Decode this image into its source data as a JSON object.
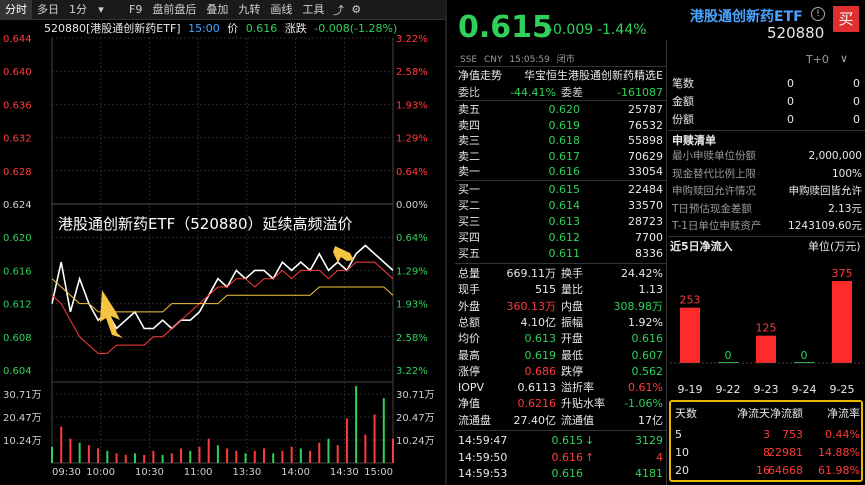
{
  "toolbar": {
    "tabs": [
      "分时",
      "多日",
      "1分",
      "F9",
      "盘前盘后",
      "叠加",
      "九转",
      "画线",
      "工具"
    ],
    "active_tab": "分时"
  },
  "chart_header": {
    "code_name": "520880[港股通创新药ETF]",
    "time": "15:00",
    "price_label": "价",
    "price": "0.616",
    "change_label": "涨跌",
    "change": "-0.008(-1.28%)"
  },
  "annotation": "港股通创新药ETF（520880）延续高频溢价",
  "chart_data": {
    "type": "line",
    "price_ticks_left": [
      "0.644",
      "0.640",
      "0.636",
      "0.632",
      "0.628",
      "0.624",
      "0.620",
      "0.616",
      "0.612",
      "0.608",
      "0.604"
    ],
    "pct_ticks_right": [
      "3.22%",
      "2.58%",
      "1.93%",
      "1.29%",
      "0.64%",
      "0.00%",
      "0.64%",
      "1.29%",
      "1.93%",
      "2.58%",
      "3.22%"
    ],
    "volume_ticks_left": [
      "30.71万",
      "20.47万",
      "10.24万"
    ],
    "volume_ticks_right": [
      "30.71万",
      "20.47万",
      "10.24万"
    ],
    "x_ticks": [
      "09:30",
      "10:00",
      "10:30",
      "11:00",
      "13:30",
      "14:00",
      "14:30",
      "15:00"
    ],
    "ylim": [
      0.604,
      0.644
    ],
    "prev_close": 0.624,
    "series": [
      {
        "values": [
          0.612,
          0.617,
          0.611,
          0.615,
          0.612,
          0.61,
          0.611,
          0.609,
          0.61,
          0.611,
          0.609,
          0.609,
          0.61,
          0.609,
          0.61,
          0.61,
          0.611,
          0.613,
          0.615,
          0.614,
          0.616,
          0.615,
          0.616,
          0.616,
          0.615,
          0.617,
          0.616,
          0.617,
          0.616,
          0.618,
          0.616,
          0.617,
          0.616,
          0.618,
          0.619,
          0.618,
          0.617,
          0.616
        ]
      },
      {
        "values": [
          0.613,
          0.612,
          0.61,
          0.608,
          0.607,
          0.606,
          0.606,
          0.607,
          0.607,
          0.607,
          0.607,
          0.608,
          0.608,
          0.609,
          0.61,
          0.611,
          0.612,
          0.613,
          0.614,
          0.614,
          0.615,
          0.615,
          0.614,
          0.615,
          0.615,
          0.616,
          0.615,
          0.616,
          0.616,
          0.616,
          0.615,
          0.616,
          0.616,
          0.617,
          0.617,
          0.617,
          0.616,
          0.615
        ]
      },
      {
        "values": [
          0.615,
          0.614,
          0.613,
          0.612,
          0.612,
          0.611,
          0.611,
          0.611,
          0.611,
          0.611,
          0.611,
          0.611,
          0.611,
          0.612,
          0.612,
          0.612,
          0.612,
          0.612,
          0.612,
          0.613,
          0.613,
          0.613,
          0.613,
          0.613,
          0.613,
          0.613,
          0.613,
          0.613,
          0.613,
          0.614,
          0.614,
          0.614,
          0.614,
          0.614,
          0.614,
          0.614,
          0.614,
          0.613
        ]
      }
    ],
    "volume": [
      0.2,
      0.45,
      0.3,
      0.25,
      0.22,
      0.18,
      0.15,
      0.12,
      0.1,
      0.12,
      0.1,
      0.15,
      0.1,
      0.12,
      0.18,
      0.15,
      0.2,
      0.3,
      0.22,
      0.18,
      0.15,
      0.12,
      0.15,
      0.18,
      0.12,
      0.15,
      0.2,
      0.18,
      0.15,
      0.25,
      0.3,
      0.22,
      0.55,
      0.95,
      0.35,
      0.6,
      0.8,
      0.3
    ],
    "volume_max": 30.71
  },
  "quote": {
    "price": "0.615",
    "change": "-0.009",
    "change_pct": "-1.44%",
    "exchange": "SSE",
    "currency": "CNY",
    "time": "15:05:59",
    "status": "闭市",
    "name": "港股通创新药ETF",
    "code": "520880"
  },
  "orderbook": {
    "nav_label": "净值走势",
    "index_name": "华宝恒生港股通创新药精选E",
    "webi_label": "委比",
    "webi": "-44.41%",
    "weicha_label": "委差",
    "weicha": "-161087",
    "asks": [
      {
        "label": "卖五",
        "price": "0.620",
        "vol": "25787"
      },
      {
        "label": "卖四",
        "price": "0.619",
        "vol": "76532"
      },
      {
        "label": "卖三",
        "price": "0.618",
        "vol": "55898"
      },
      {
        "label": "卖二",
        "price": "0.617",
        "vol": "70629"
      },
      {
        "label": "卖一",
        "price": "0.616",
        "vol": "33054"
      }
    ],
    "bids": [
      {
        "label": "买一",
        "price": "0.615",
        "vol": "22484"
      },
      {
        "label": "买二",
        "price": "0.614",
        "vol": "33570"
      },
      {
        "label": "买三",
        "price": "0.613",
        "vol": "28723"
      },
      {
        "label": "买四",
        "price": "0.612",
        "vol": "7700"
      },
      {
        "label": "买五",
        "price": "0.611",
        "vol": "8336"
      }
    ]
  },
  "stats": {
    "rows": [
      {
        "l1": "总量",
        "v1": "669.11万",
        "c1": "white",
        "l2": "换手",
        "v2": "24.42%",
        "c2": "white"
      },
      {
        "l1": "现手",
        "v1": "515",
        "c1": "white",
        "l2": "量比",
        "v2": "1.13",
        "c2": "white"
      },
      {
        "l1": "外盘",
        "v1": "360.13万",
        "c1": "red",
        "l2": "内盘",
        "v2": "308.98万",
        "c2": "green"
      },
      {
        "l1": "总额",
        "v1": "4.10亿",
        "c1": "white",
        "l2": "振幅",
        "v2": "1.92%",
        "c2": "white"
      },
      {
        "l1": "均价",
        "v1": "0.613",
        "c1": "green",
        "l2": "开盘",
        "v2": "0.616",
        "c2": "green"
      },
      {
        "l1": "最高",
        "v1": "0.619",
        "c1": "green",
        "l2": "最低",
        "v2": "0.607",
        "c2": "green"
      },
      {
        "l1": "涨停",
        "v1": "0.686",
        "c1": "red",
        "l2": "跌停",
        "v2": "0.562",
        "c2": "green"
      },
      {
        "l1": "IOPV",
        "v1": "0.6113",
        "c1": "white",
        "l2": "溢折率",
        "v2": "0.61%",
        "c2": "red"
      },
      {
        "l1": "净值",
        "v1": "0.6216",
        "c1": "red",
        "l2": "升贴水率",
        "v2": "-1.06%",
        "c2": "green"
      },
      {
        "l1": "流通盘",
        "v1": "27.40亿",
        "c1": "white",
        "l2": "流通值",
        "v2": "17亿",
        "c2": "white"
      }
    ]
  },
  "ticks": [
    {
      "time": "14:59:47",
      "price": "0.615",
      "arrow": "↓",
      "vol": "3129",
      "color": "green"
    },
    {
      "time": "14:59:50",
      "price": "0.616",
      "arrow": "↑",
      "vol": "4",
      "color": "red"
    },
    {
      "time": "14:59:53",
      "price": "0.616",
      "arrow": "",
      "vol": "4181",
      "color": "green"
    }
  ],
  "fund": {
    "top_label": "T+0",
    "top_rows": [
      {
        "label": "笔数",
        "v1": "0",
        "v2": "0"
      },
      {
        "label": "金额",
        "v1": "0",
        "v2": "0"
      },
      {
        "label": "份额",
        "v1": "0",
        "v2": "0"
      }
    ],
    "redeem_title": "申赎清单",
    "redeem_rows": [
      {
        "label": "最小申赎单位份额",
        "value": "2,000,000"
      },
      {
        "label": "现金替代比例上限",
        "value": "100%"
      },
      {
        "label": "申购赎回允许情况",
        "value": "申购赎回皆允许"
      },
      {
        "label": "T日预估现金差额",
        "value": "2.13元"
      },
      {
        "label": "T-1日单位申赎资产",
        "value": "1243109.60元"
      }
    ],
    "inflow_title": "近5日净流入",
    "inflow_unit": "单位(万元)",
    "inflow_chart": {
      "type": "bar",
      "categories": [
        "9-19",
        "9-22",
        "9-23",
        "9-24",
        "9-25"
      ],
      "values": [
        253,
        0,
        125,
        0,
        375
      ],
      "labels": [
        "253",
        "0",
        "125",
        "0",
        "375"
      ]
    },
    "flow_table": {
      "headers": [
        "天数",
        "净流天",
        "净流额",
        "净流率"
      ],
      "rows": [
        [
          "5",
          "3",
          "753",
          "0.44%"
        ],
        [
          "10",
          "8",
          "22981",
          "14.88%"
        ],
        [
          "20",
          "16",
          "64668",
          "61.98%"
        ]
      ]
    }
  },
  "colors": {
    "up": "#ff3b3b",
    "down": "#2fd15a",
    "accent": "#4aa3ff",
    "highlight": "#e6b800"
  }
}
